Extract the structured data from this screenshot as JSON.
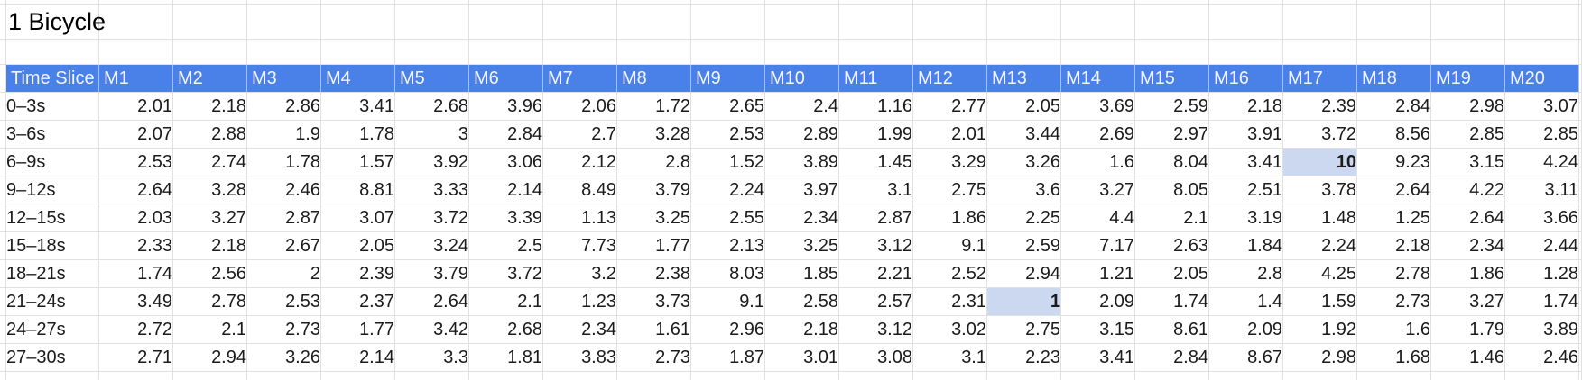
{
  "title": "1 Bicycle",
  "colors": {
    "header_bg": "#4a81e9",
    "header_text": "#f4f4fe",
    "gridline": "#e1e1e1",
    "cell_text": "#1b1b1b",
    "highlight_bg": "#ccd8f0"
  },
  "table": {
    "label_header": "Time Slice",
    "columns": [
      "M1",
      "M2",
      "M3",
      "M4",
      "M5",
      "M6",
      "M7",
      "M8",
      "M9",
      "M10",
      "M11",
      "M12",
      "M13",
      "M14",
      "M15",
      "M16",
      "M17",
      "M18",
      "M19",
      "M20"
    ],
    "rows": [
      {
        "label": "0–3s",
        "values": [
          "2.01",
          "2.18",
          "2.86",
          "3.41",
          "2.68",
          "3.96",
          "2.06",
          "1.72",
          "2.65",
          "2.4",
          "1.16",
          "2.77",
          "2.05",
          "3.69",
          "2.59",
          "2.18",
          "2.39",
          "2.84",
          "2.98",
          "3.07"
        ]
      },
      {
        "label": "3–6s",
        "values": [
          "2.07",
          "2.88",
          "1.9",
          "1.78",
          "3",
          "2.84",
          "2.7",
          "3.28",
          "2.53",
          "2.89",
          "1.99",
          "2.01",
          "3.44",
          "2.69",
          "2.97",
          "3.91",
          "3.72",
          "8.56",
          "2.85",
          "2.85"
        ]
      },
      {
        "label": "6–9s",
        "values": [
          "2.53",
          "2.74",
          "1.78",
          "1.57",
          "3.92",
          "3.06",
          "2.12",
          "2.8",
          "1.52",
          "3.89",
          "1.45",
          "3.29",
          "3.26",
          "1.6",
          "8.04",
          "3.41",
          "10",
          "9.23",
          "3.15",
          "4.24"
        ]
      },
      {
        "label": "9–12s",
        "values": [
          "2.64",
          "3.28",
          "2.46",
          "8.81",
          "3.33",
          "2.14",
          "8.49",
          "3.79",
          "2.24",
          "3.97",
          "3.1",
          "2.75",
          "3.6",
          "3.27",
          "8.05",
          "2.51",
          "3.78",
          "2.64",
          "4.22",
          "3.11"
        ]
      },
      {
        "label": "12–15s",
        "values": [
          "2.03",
          "3.27",
          "2.87",
          "3.07",
          "3.72",
          "3.39",
          "1.13",
          "3.25",
          "2.55",
          "2.34",
          "2.87",
          "1.86",
          "2.25",
          "4.4",
          "2.1",
          "3.19",
          "1.48",
          "1.25",
          "2.64",
          "3.66"
        ]
      },
      {
        "label": "15–18s",
        "values": [
          "2.33",
          "2.18",
          "2.67",
          "2.05",
          "3.24",
          "2.5",
          "7.73",
          "1.77",
          "2.13",
          "3.25",
          "3.12",
          "9.1",
          "2.59",
          "7.17",
          "2.63",
          "1.84",
          "2.24",
          "2.18",
          "2.34",
          "2.44"
        ]
      },
      {
        "label": "18–21s",
        "values": [
          "1.74",
          "2.56",
          "2",
          "2.39",
          "3.79",
          "3.72",
          "3.2",
          "2.38",
          "8.03",
          "1.85",
          "2.21",
          "2.52",
          "2.94",
          "1.21",
          "2.05",
          "2.8",
          "4.25",
          "2.78",
          "1.86",
          "1.28"
        ]
      },
      {
        "label": "21–24s",
        "values": [
          "3.49",
          "2.78",
          "2.53",
          "2.37",
          "2.64",
          "2.1",
          "1.23",
          "3.73",
          "9.1",
          "2.58",
          "2.57",
          "2.31",
          "1",
          "2.09",
          "1.74",
          "1.4",
          "1.59",
          "2.73",
          "3.27",
          "1.74"
        ]
      },
      {
        "label": "24–27s",
        "values": [
          "2.72",
          "2.1",
          "2.73",
          "1.77",
          "3.42",
          "2.68",
          "2.34",
          "1.61",
          "2.96",
          "2.18",
          "3.12",
          "3.02",
          "2.75",
          "3.15",
          "8.61",
          "2.09",
          "1.92",
          "1.6",
          "1.79",
          "3.89"
        ]
      },
      {
        "label": "27–30s",
        "values": [
          "2.71",
          "2.94",
          "3.26",
          "2.14",
          "3.3",
          "1.81",
          "3.83",
          "2.73",
          "1.87",
          "3.01",
          "3.08",
          "3.1",
          "2.23",
          "3.41",
          "2.84",
          "8.67",
          "2.98",
          "1.68",
          "1.46",
          "2.46"
        ]
      }
    ],
    "highlighted_cells": [
      {
        "row_label": "6–9s",
        "column": "M17",
        "row_index": 2,
        "col_index": 16,
        "value": "10"
      },
      {
        "row_label": "21–24s",
        "column": "M13",
        "row_index": 7,
        "col_index": 12,
        "value": "1"
      }
    ]
  }
}
